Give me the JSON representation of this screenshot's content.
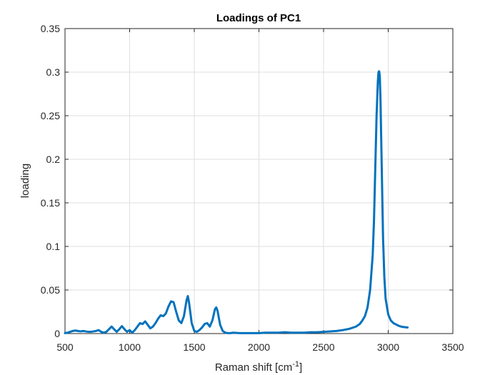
{
  "chart_data": {
    "type": "line",
    "title": "Loadings of PC1",
    "xlabel": "Raman shift [cm",
    "xlabel_superscript": "-1",
    "xlabel_suffix": "]",
    "ylabel": "loading",
    "xlim": [
      500,
      3500
    ],
    "ylim": [
      0,
      0.35
    ],
    "xticks": [
      500,
      1000,
      1500,
      2000,
      2500,
      3000,
      3500
    ],
    "yticks": [
      0,
      0.05,
      0.1,
      0.15,
      0.2,
      0.25,
      0.3,
      0.35
    ],
    "xtick_labels": [
      "500",
      "1000",
      "1500",
      "2000",
      "2500",
      "3000",
      "3500"
    ],
    "ytick_labels": [
      "0",
      "0.05",
      "0.1",
      "0.15",
      "0.2",
      "0.25",
      "0.3",
      "0.35"
    ],
    "grid": true,
    "line_color": "#0072BD",
    "series": [
      {
        "x": [
          500,
          520,
          540,
          560,
          580,
          600,
          620,
          640,
          660,
          680,
          700,
          720,
          740,
          760,
          780,
          800,
          820,
          840,
          860,
          880,
          900,
          920,
          940,
          960,
          980,
          1000,
          1020,
          1040,
          1060,
          1080,
          1100,
          1120,
          1140,
          1160,
          1180,
          1200,
          1220,
          1240,
          1260,
          1280,
          1300,
          1320,
          1340,
          1360,
          1380,
          1400,
          1420,
          1440,
          1450,
          1460,
          1480,
          1500,
          1520,
          1540,
          1560,
          1580,
          1600,
          1620,
          1640,
          1660,
          1670,
          1680,
          1700,
          1720,
          1740,
          1760,
          1780,
          1800,
          1850,
          1900,
          1950,
          2000,
          2050,
          2100,
          2150,
          2200,
          2250,
          2300,
          2350,
          2400,
          2450,
          2500,
          2550,
          2600,
          2650,
          2700,
          2750,
          2780,
          2800,
          2820,
          2840,
          2860,
          2880,
          2890,
          2900,
          2910,
          2920,
          2925,
          2930,
          2935,
          2940,
          2950,
          2960,
          2970,
          2980,
          3000,
          3020,
          3040,
          3060,
          3080,
          3100,
          3120,
          3150
        ],
        "y": [
          0.0005,
          0.001,
          0.002,
          0.003,
          0.0035,
          0.003,
          0.0025,
          0.003,
          0.0025,
          0.002,
          0.002,
          0.0025,
          0.003,
          0.004,
          0.002,
          0.001,
          0.002,
          0.005,
          0.008,
          0.005,
          0.002,
          0.005,
          0.0085,
          0.005,
          0.002,
          0.004,
          0.001,
          0.004,
          0.008,
          0.012,
          0.011,
          0.014,
          0.01,
          0.006,
          0.008,
          0.012,
          0.017,
          0.021,
          0.02,
          0.023,
          0.031,
          0.037,
          0.036,
          0.025,
          0.015,
          0.012,
          0.02,
          0.038,
          0.043,
          0.035,
          0.012,
          0.003,
          0.002,
          0.004,
          0.007,
          0.011,
          0.012,
          0.008,
          0.015,
          0.028,
          0.03,
          0.026,
          0.01,
          0.003,
          0.001,
          0.0005,
          0.0005,
          0.001,
          0.0005,
          0.0005,
          0.0005,
          0.0005,
          0.001,
          0.001,
          0.001,
          0.0015,
          0.001,
          0.001,
          0.001,
          0.0015,
          0.0015,
          0.002,
          0.0025,
          0.003,
          0.004,
          0.0055,
          0.008,
          0.011,
          0.015,
          0.02,
          0.03,
          0.05,
          0.09,
          0.13,
          0.19,
          0.25,
          0.29,
          0.3,
          0.301,
          0.295,
          0.27,
          0.19,
          0.11,
          0.065,
          0.04,
          0.022,
          0.015,
          0.012,
          0.0105,
          0.009,
          0.008,
          0.0075,
          0.007
        ]
      }
    ]
  }
}
